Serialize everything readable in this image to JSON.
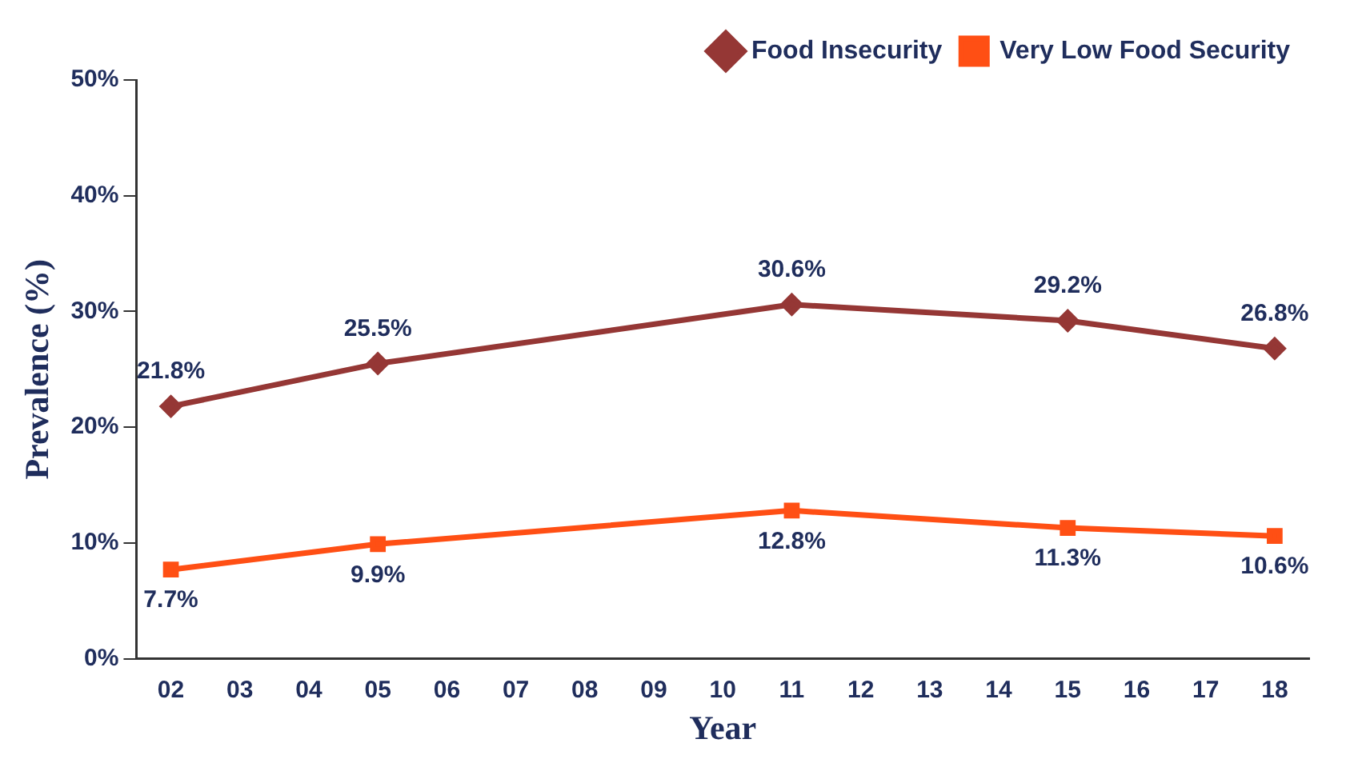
{
  "chart_data": {
    "type": "line",
    "xlabel": "Year",
    "ylabel": "Prevalence (%)",
    "x": [
      2,
      5,
      11,
      15,
      18
    ],
    "xlim": [
      1.5,
      18.5
    ],
    "xticks": [
      {
        "value": 2,
        "label": "02"
      },
      {
        "value": 3,
        "label": "03"
      },
      {
        "value": 4,
        "label": "04"
      },
      {
        "value": 5,
        "label": "05"
      },
      {
        "value": 6,
        "label": "06"
      },
      {
        "value": 7,
        "label": "07"
      },
      {
        "value": 8,
        "label": "08"
      },
      {
        "value": 9,
        "label": "09"
      },
      {
        "value": 10,
        "label": "10"
      },
      {
        "value": 11,
        "label": "11"
      },
      {
        "value": 12,
        "label": "12"
      },
      {
        "value": 13,
        "label": "13"
      },
      {
        "value": 14,
        "label": "14"
      },
      {
        "value": 15,
        "label": "15"
      },
      {
        "value": 16,
        "label": "16"
      },
      {
        "value": 17,
        "label": "17"
      },
      {
        "value": 18,
        "label": "18"
      }
    ],
    "ylim": [
      0,
      50
    ],
    "yticks": [
      {
        "value": 0,
        "label": "0%"
      },
      {
        "value": 10,
        "label": "10%"
      },
      {
        "value": 20,
        "label": "20%"
      },
      {
        "value": 30,
        "label": "30%"
      },
      {
        "value": 40,
        "label": "40%"
      },
      {
        "value": 50,
        "label": "50%"
      }
    ],
    "series": [
      {
        "name": "Food Insecurity",
        "color": "#953735",
        "marker": "diamond",
        "values": [
          21.8,
          25.5,
          30.6,
          29.2,
          26.8
        ],
        "value_labels": [
          "21.8%",
          "25.5%",
          "30.6%",
          "29.2%",
          "26.8%"
        ]
      },
      {
        "name": "Very Low Food Security",
        "color": "#ff4f14",
        "marker": "square",
        "values": [
          7.7,
          9.9,
          12.8,
          11.3,
          10.6
        ],
        "value_labels": [
          "7.7%",
          "9.9%",
          "12.8%",
          "11.3%",
          "10.6%"
        ]
      }
    ],
    "legend": "top right",
    "grid": false,
    "line_style": "solid"
  }
}
